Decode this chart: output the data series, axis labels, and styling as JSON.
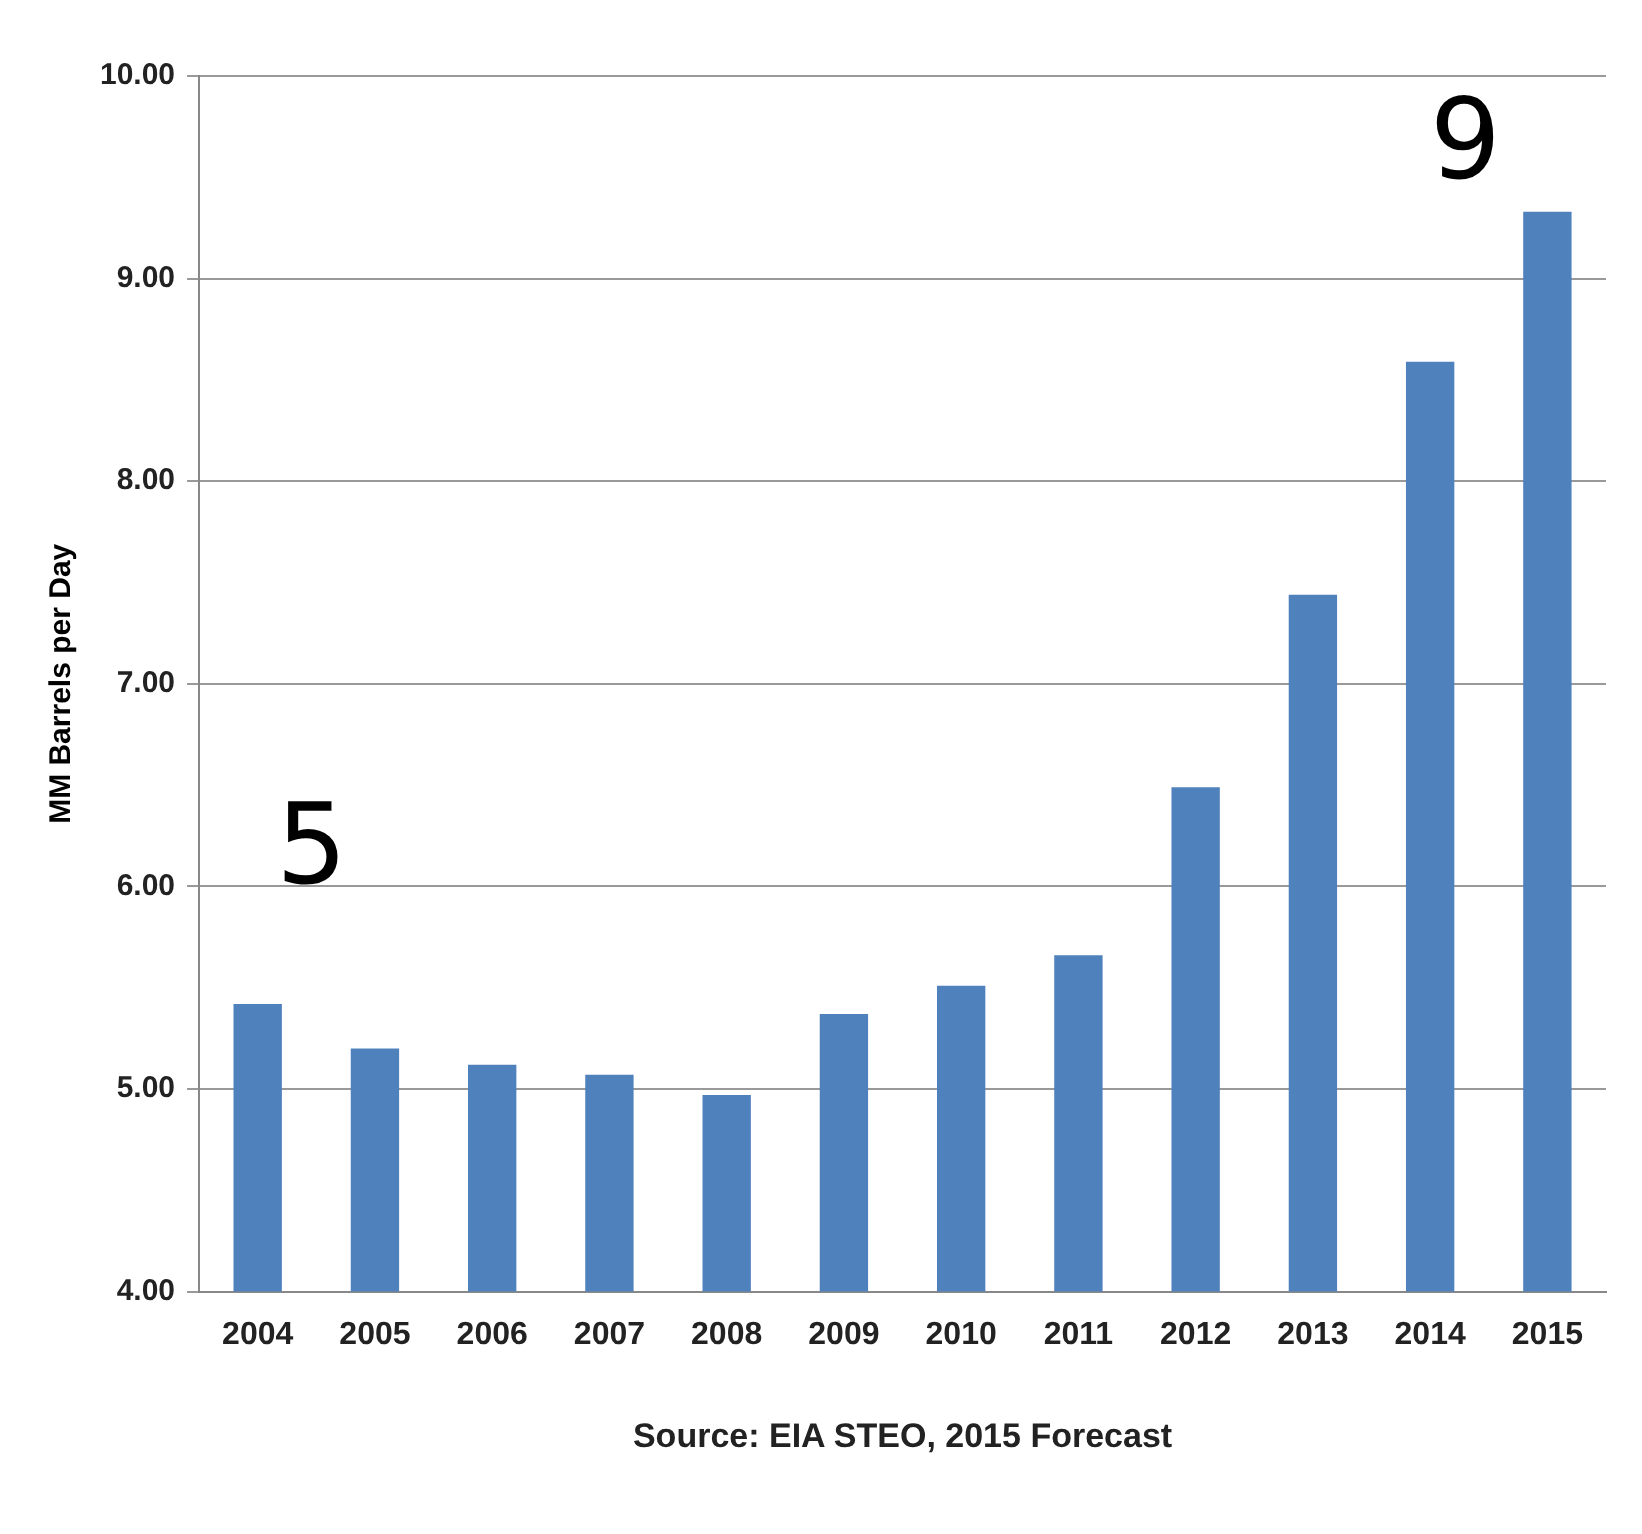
{
  "chart_data": {
    "type": "bar",
    "ylabel": "MM Barrels per Day",
    "categories": [
      "2004",
      "2005",
      "2006",
      "2007",
      "2008",
      "2009",
      "2010",
      "2011",
      "2012",
      "2013",
      "2014",
      "2015"
    ],
    "values": [
      5.42,
      5.2,
      5.12,
      5.07,
      4.97,
      5.37,
      5.51,
      5.66,
      6.49,
      7.44,
      8.59,
      9.33
    ],
    "color": "#4f81bd",
    "ylim": [
      4,
      10
    ],
    "yticks": [
      {
        "value": 4,
        "label": "4.00"
      },
      {
        "value": 5,
        "label": "5.00"
      },
      {
        "value": 6,
        "label": "6.00"
      },
      {
        "value": 7,
        "label": "7.00"
      },
      {
        "value": 8,
        "label": "8.00"
      },
      {
        "value": 9,
        "label": "9.00"
      },
      {
        "value": 10,
        "label": "10.00"
      }
    ],
    "grid": "y",
    "annotations": [
      "5",
      "9",
      "Source: EIA STEO, 2015 Forecast"
    ]
  }
}
